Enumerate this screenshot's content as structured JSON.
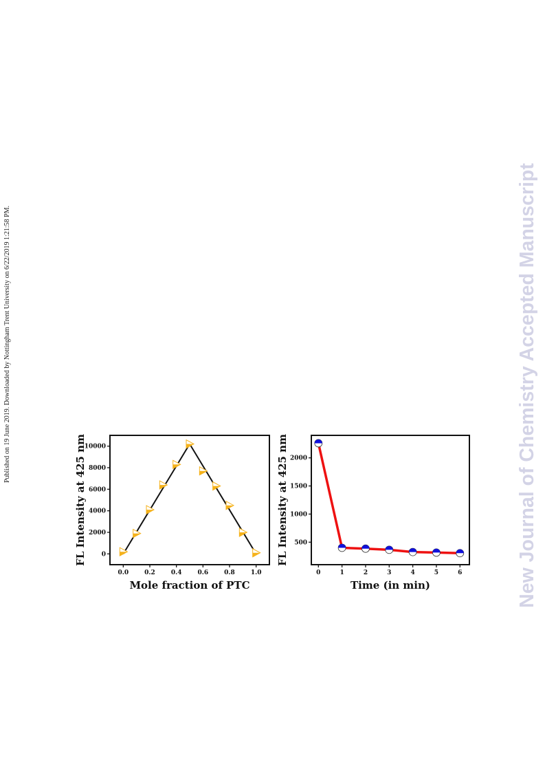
{
  "side_note": "Published on 19 June 2019. Downloaded by Nottingham Trent University on 6/22/2019 1:21:58 PM.",
  "watermark": "New Journal of Chemistry Accepted Manuscript",
  "chart_data": [
    {
      "type": "scatter",
      "xlabel": "Mole fraction of PTC",
      "ylabel": "FL Intensity at 425 nm",
      "xlim": [
        -0.1,
        1.1
      ],
      "ylim": [
        -1000,
        11000
      ],
      "xticks": [
        "0.0",
        "0.2",
        "0.4",
        "0.6",
        "0.8",
        "1.0"
      ],
      "yticks": [
        "0",
        "2000",
        "4000",
        "6000",
        "8000",
        "10000"
      ],
      "series": [
        {
          "x": [
            0.0,
            0.1,
            0.2,
            0.3,
            0.4,
            0.5,
            0.6,
            0.7,
            0.8,
            0.9,
            1.0
          ],
          "y": [
            200,
            1900,
            4100,
            6400,
            8300,
            10200,
            7700,
            6300,
            4500,
            2000,
            100
          ],
          "marker": "half-filled right-pointing triangle",
          "color": "#f5b21b"
        }
      ],
      "fit_line": {
        "x": [
          0.0,
          0.5,
          1.0
        ],
        "y": [
          0,
          10200,
          0
        ],
        "color": "#111111"
      },
      "grid": false,
      "legend": "none"
    },
    {
      "type": "line",
      "xlabel": "Time (in min)",
      "ylabel": "FL Intensity at 425 nm",
      "xlim": [
        -0.3,
        6.4
      ],
      "ylim": [
        100,
        2400
      ],
      "xticks": [
        "0",
        "1",
        "2",
        "3",
        "4",
        "5",
        "6"
      ],
      "yticks": [
        "500",
        "1000",
        "1500",
        "2000"
      ],
      "series": [
        {
          "x": [
            0,
            1,
            2,
            3,
            4,
            5,
            6
          ],
          "y": [
            2260,
            400,
            385,
            365,
            325,
            315,
            305
          ],
          "line_color": "#ee1111",
          "marker": "half-filled circle",
          "marker_color": "#1010dd"
        }
      ],
      "grid": false,
      "legend": "none"
    }
  ]
}
